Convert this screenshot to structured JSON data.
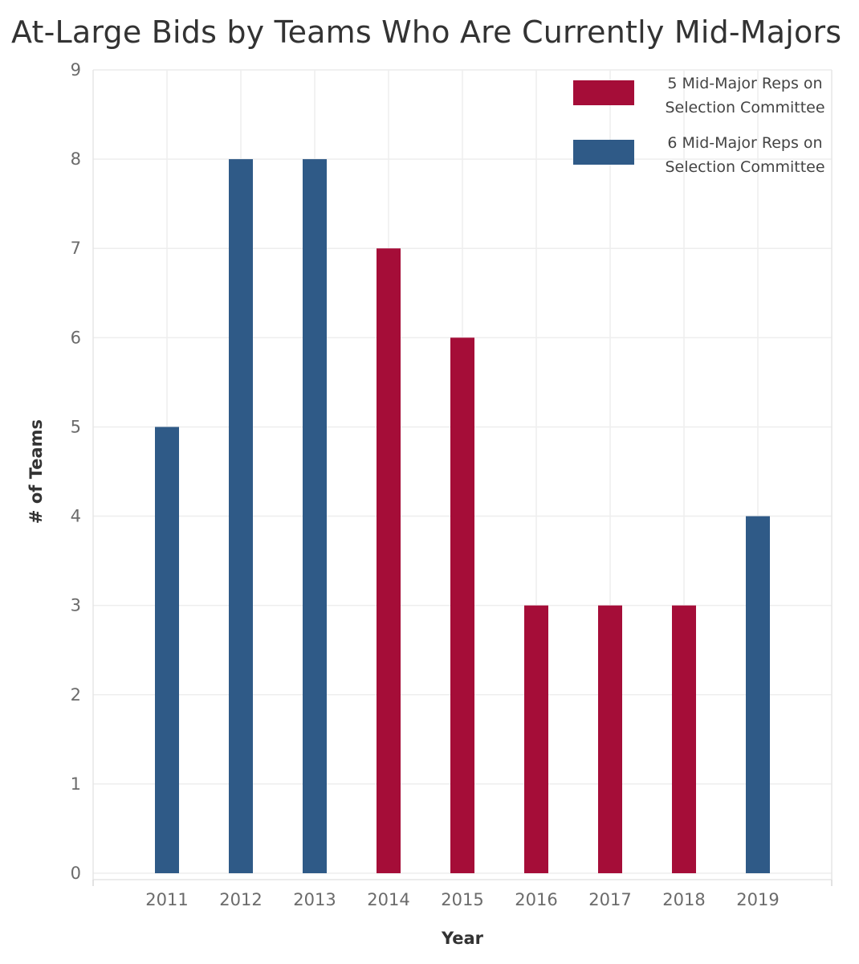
{
  "chart_data": {
    "type": "bar",
    "title": "At-Large Bids by Teams Who Are Currently Mid-Majors",
    "xlabel": "Year",
    "ylabel": "# of Teams",
    "categories": [
      "2011",
      "2012",
      "2013",
      "2014",
      "2015",
      "2016",
      "2017",
      "2018",
      "2019"
    ],
    "values": [
      5,
      8,
      8,
      7,
      6,
      3,
      3,
      3,
      4
    ],
    "groups": [
      "6 Mid-Major Reps on Selection Committee",
      "6 Mid-Major Reps on Selection Committee",
      "6 Mid-Major Reps on Selection Committee",
      "5 Mid-Major Reps on Selection Committee",
      "5 Mid-Major Reps on Selection Committee",
      "5 Mid-Major Reps on Selection Committee",
      "5 Mid-Major Reps on Selection Committee",
      "5 Mid-Major Reps on Selection Committee",
      "6 Mid-Major Reps on Selection Committee"
    ],
    "ylim": [
      0,
      9
    ],
    "yticks": [
      "0",
      "1",
      "2",
      "3",
      "4",
      "5",
      "6",
      "7",
      "8",
      "9"
    ],
    "grid": true,
    "legend": {
      "position": "top-right",
      "entries": [
        {
          "lines": [
            "5 Mid-Major Reps on",
            "Selection Committee"
          ],
          "color": "#a50d38"
        },
        {
          "lines": [
            "6 Mid-Major Reps on",
            "Selection Committee"
          ],
          "color": "#2f5a87"
        }
      ]
    },
    "colors": {
      "5 Mid-Major Reps on Selection Committee": "#a50d38",
      "6 Mid-Major Reps on Selection Committee": "#2f5a87"
    }
  }
}
